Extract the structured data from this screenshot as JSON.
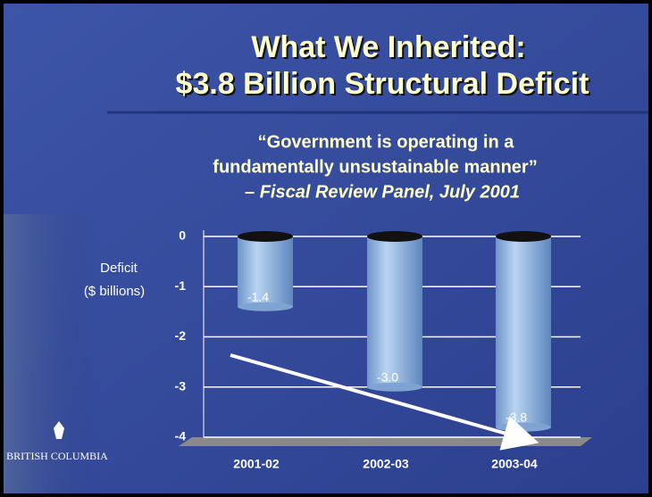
{
  "title": [
    "What We Inherited:",
    "$3.8 Billion Structural Deficit"
  ],
  "quote": [
    "“Government is operating in a",
    "fundamentally unsustainable manner”",
    "– Fiscal Review Panel, July 2001"
  ],
  "logo": "British Columbia",
  "chart_data": {
    "type": "bar",
    "y_label": [
      "Deficit",
      "($ billions)"
    ],
    "categories": [
      "2001-02",
      "2002-03",
      "2003-04"
    ],
    "values": [
      -1.4,
      -3.0,
      -3.8
    ],
    "value_labels": [
      "-1.4",
      "-3.0",
      "-3.8"
    ],
    "color": "#a9c8ec",
    "ylim": [
      -4,
      0
    ],
    "yticks": [
      0,
      -1,
      -2,
      -3,
      -4
    ],
    "grid": true
  }
}
